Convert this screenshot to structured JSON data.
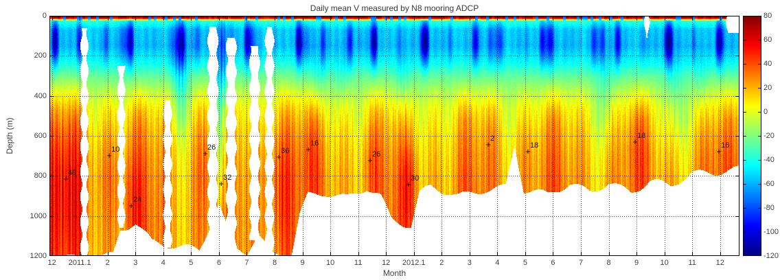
{
  "chart_data": {
    "type": "heatmap",
    "title": "Daily mean V measured by N8 mooring ADCP",
    "xlabel": "Month",
    "ylabel": "Depth (m)",
    "x_tick_labels": [
      "12",
      "2011.1",
      "2",
      "3",
      "4",
      "5",
      "6",
      "7",
      "8",
      "9",
      "10",
      "11",
      "12",
      "2012.1",
      "2",
      "3",
      "4",
      "5",
      "6",
      "7",
      "8",
      "9",
      "10",
      "11",
      "12"
    ],
    "y_tick_labels": [
      "0",
      "200",
      "400",
      "600",
      "800",
      "1000",
      "1200"
    ],
    "y_tick_values": [
      0,
      200,
      400,
      600,
      800,
      1000,
      1200
    ],
    "y_range_m": [
      0,
      1200
    ],
    "x_range_months_since_dec2010": [
      -0.09,
      24.7
    ],
    "grid": "dotted, on top of data",
    "colorbar": {
      "min": -120,
      "max": 80,
      "tick_step": 20,
      "tick_labels": [
        "80",
        "60",
        "40",
        "20",
        "0",
        "-20",
        "-40",
        "-60",
        "-80",
        "-100",
        "-120"
      ],
      "colormap": "jet",
      "position": "right"
    },
    "marker_symbol": "+",
    "annotations": [
      {
        "label": "46",
        "month": 0.5,
        "depth_m": 815
      },
      {
        "label": "10",
        "month": 2.06,
        "depth_m": 700
      },
      {
        "label": "24",
        "month": 2.85,
        "depth_m": 950
      },
      {
        "label": "26",
        "month": 5.51,
        "depth_m": 690
      },
      {
        "label": "32",
        "month": 6.08,
        "depth_m": 840
      },
      {
        "label": "36",
        "month": 8.15,
        "depth_m": 705
      },
      {
        "label": "16",
        "month": 9.21,
        "depth_m": 670
      },
      {
        "label": "26",
        "month": 11.43,
        "depth_m": 725
      },
      {
        "label": "30",
        "month": 12.81,
        "depth_m": 845
      },
      {
        "label": "2",
        "month": 15.67,
        "depth_m": 645
      },
      {
        "label": "18",
        "month": 17.1,
        "depth_m": 680
      },
      {
        "label": "18",
        "month": 20.95,
        "depth_m": 630
      },
      {
        "label": "16",
        "month": 23.96,
        "depth_m": 680
      }
    ],
    "field_model": {
      "description": "V velocity field: negative (blue/cyan) 0-300 m, green transition 300-450 m, positive yellow/orange below 450 m; strong orange-red deep cores Dec2010-Jan2011 and Aug2011; white = no data (below bottom coverage and gap columns).",
      "base_profile_depth_value": [
        [
          0,
          -12
        ],
        [
          20,
          -35
        ],
        [
          70,
          -58
        ],
        [
          150,
          -62
        ],
        [
          230,
          -46
        ],
        [
          310,
          -24
        ],
        [
          390,
          -6
        ],
        [
          470,
          7
        ],
        [
          570,
          15
        ],
        [
          690,
          21
        ],
        [
          820,
          25
        ],
        [
          1000,
          27
        ],
        [
          1200,
          28
        ]
      ],
      "bottom_profile_month_depth": [
        [
          -0.1,
          1200
        ],
        [
          2.2,
          1200
        ],
        [
          2.45,
          1080
        ],
        [
          3.0,
          1040
        ],
        [
          3.6,
          1140
        ],
        [
          4.4,
          1150
        ],
        [
          5.3,
          1160
        ],
        [
          6.0,
          930
        ],
        [
          6.5,
          1150
        ],
        [
          7.0,
          1180
        ],
        [
          7.4,
          1100
        ],
        [
          7.9,
          1200
        ],
        [
          8.6,
          1200
        ],
        [
          8.9,
          1000
        ],
        [
          9.2,
          900
        ],
        [
          9.8,
          880
        ],
        [
          10.6,
          900
        ],
        [
          11.3,
          850
        ],
        [
          11.8,
          900
        ],
        [
          12.2,
          1020
        ],
        [
          12.9,
          1060
        ],
        [
          13.2,
          900
        ],
        [
          13.6,
          860
        ],
        [
          14.6,
          900
        ],
        [
          15.5,
          860
        ],
        [
          16.3,
          850
        ],
        [
          16.62,
          640
        ],
        [
          16.95,
          870
        ],
        [
          17.8,
          900
        ],
        [
          18.6,
          850
        ],
        [
          19.3,
          880
        ],
        [
          20.0,
          830
        ],
        [
          20.8,
          870
        ],
        [
          21.5,
          820
        ],
        [
          22.2,
          850
        ],
        [
          23.0,
          800
        ],
        [
          23.8,
          790
        ],
        [
          24.8,
          760
        ]
      ],
      "data_gaps_month0_month1_depth0_depth1": [
        [
          1.05,
          1.28,
          60,
          1200
        ],
        [
          2.38,
          2.6,
          250,
          1060
        ],
        [
          4.03,
          4.28,
          420,
          1160
        ],
        [
          5.62,
          5.95,
          55,
          1200
        ],
        [
          6.28,
          6.6,
          110,
          1200
        ],
        [
          7.12,
          7.44,
          150,
          1120
        ],
        [
          7.68,
          7.95,
          55,
          1200
        ],
        [
          21.3,
          21.44,
          3,
          110
        ],
        [
          24.25,
          24.75,
          3,
          85
        ]
      ],
      "features_month_mwidth_depth_dwidth_amp": [
        [
          0.5,
          0.85,
          850,
          430,
          30
        ],
        [
          2.05,
          0.45,
          760,
          280,
          13
        ],
        [
          2.9,
          0.45,
          930,
          260,
          15
        ],
        [
          5.5,
          0.4,
          700,
          330,
          16
        ],
        [
          8.17,
          0.6,
          820,
          420,
          27
        ],
        [
          9.25,
          0.4,
          660,
          240,
          11
        ],
        [
          11.45,
          0.4,
          730,
          220,
          14
        ],
        [
          12.85,
          0.3,
          860,
          240,
          24
        ],
        [
          15.7,
          0.35,
          620,
          180,
          4
        ],
        [
          17.1,
          0.45,
          700,
          190,
          8
        ],
        [
          20.95,
          0.45,
          640,
          190,
          10
        ],
        [
          23.95,
          0.45,
          690,
          190,
          8
        ],
        [
          6.08,
          0.22,
          560,
          480,
          -52
        ],
        [
          4.62,
          0.3,
          320,
          260,
          -28
        ],
        [
          12.6,
          0.3,
          400,
          200,
          -15
        ],
        [
          19.9,
          0.35,
          420,
          220,
          -16
        ],
        [
          22.35,
          0.4,
          430,
          240,
          -18
        ],
        [
          23.3,
          0.3,
          380,
          200,
          -12
        ],
        [
          9.6,
          0.3,
          350,
          200,
          -12
        ],
        [
          10.4,
          0.3,
          300,
          180,
          -10
        ]
      ]
    }
  },
  "colors": {
    "background": "#ffffff",
    "axis_line": "#000000",
    "tick_text": "#3f3f3f",
    "grid_dots": "#1a1a1a",
    "annotation_text": "#111111",
    "colorbar_top": "#7f0000",
    "colorbar_bottom": "#00007f"
  }
}
